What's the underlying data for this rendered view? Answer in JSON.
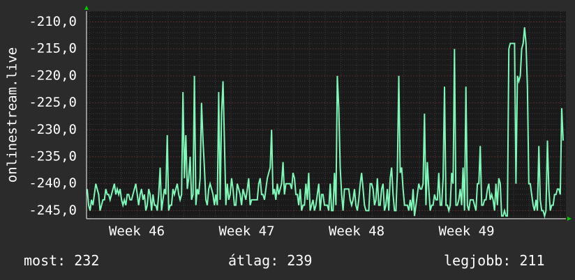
{
  "chart_data": {
    "type": "line",
    "ylabel": "onlinestream.live",
    "ylim": [
      -246.5,
      -208.0
    ],
    "y_ticks": [
      -210,
      -215,
      -220,
      -225,
      -230,
      -235,
      -240,
      -245
    ],
    "y_tick_labels": [
      "-210,0",
      "-215,0",
      "-220,0",
      "-225,0",
      "-230,0",
      "-235,0",
      "-240,0",
      "-245,0"
    ],
    "x_tick_labels": [
      "Week 46",
      "Week 47",
      "Week 48",
      "Week 49"
    ],
    "grid": true,
    "colors": {
      "background": "#2b2b2b",
      "plot": "#1a1a1a",
      "line": "#7ff7b8",
      "grid_major": "#5a2f2f",
      "grid_minor": "#3a3a3a",
      "arrow": "#00cc00",
      "text": "#ffffff"
    },
    "series": [
      {
        "values": [
          -241,
          -244,
          -245,
          -243,
          -244,
          -242,
          -240,
          -241,
          -242,
          -245,
          -244,
          -243,
          -243,
          -241,
          -242,
          -242,
          -243,
          -242,
          -241,
          -240,
          -242,
          -241,
          -242,
          -241,
          -243,
          -244,
          -243,
          -244,
          -242,
          -242,
          -243,
          -243,
          -242,
          -241,
          -240,
          -242,
          -244,
          -242,
          -241,
          -243,
          -242,
          -245,
          -244,
          -241,
          -242,
          -245,
          -242,
          -244,
          -244,
          -245,
          -242,
          -237,
          -245,
          -243,
          -241,
          -242,
          -231,
          -245,
          -244,
          -244,
          -241,
          -242,
          -241,
          -240,
          -242,
          -243,
          -242,
          -223,
          -239,
          -231,
          -241,
          -239,
          -235,
          -243,
          -242,
          -220,
          -244,
          -241,
          -242,
          -239,
          -225,
          -232,
          -237,
          -243,
          -244,
          -241,
          -240,
          -241,
          -242,
          -244,
          -242,
          -244,
          -223,
          -243,
          -227,
          -221,
          -232,
          -244,
          -240,
          -243,
          -242,
          -239,
          -241,
          -244,
          -244,
          -240,
          -241,
          -242,
          -244,
          -241,
          -242,
          -243,
          -241,
          -239,
          -244,
          -243,
          -243,
          -243,
          -243,
          -243,
          -240,
          -239,
          -242,
          -242,
          -243,
          -241,
          -239,
          -238,
          -237,
          -230,
          -242,
          -241,
          -243,
          -240,
          -242,
          -241,
          -240,
          -236,
          -242,
          -240,
          -240,
          -240,
          -240,
          -241,
          -238,
          -239,
          -242,
          -242,
          -244,
          -241,
          -245,
          -244,
          -244,
          -240,
          -243,
          -238,
          -245,
          -244,
          -243,
          -245,
          -244,
          -242,
          -240,
          -245,
          -242,
          -242,
          -244,
          -244,
          -244,
          -245,
          -240,
          -245,
          -245,
          -238,
          -244,
          -220,
          -226,
          -237,
          -242,
          -245,
          -241,
          -241,
          -241,
          -241,
          -243,
          -244,
          -243,
          -241,
          -244,
          -245,
          -243,
          -240,
          -238,
          -241,
          -244,
          -245,
          -245,
          -245,
          -240,
          -240,
          -241,
          -244,
          -243,
          -239,
          -244,
          -244,
          -241,
          -240,
          -245,
          -244,
          -241,
          -245,
          -239,
          -237,
          -242,
          -245,
          -245,
          -238,
          -220,
          -238,
          -237,
          -241,
          -244,
          -244,
          -244,
          -245,
          -243,
          -245,
          -241,
          -246,
          -244,
          -242,
          -240,
          -241,
          -241,
          -240,
          -227,
          -244,
          -236,
          -241,
          -245,
          -244,
          -244,
          -242,
          -243,
          -243,
          -238,
          -244,
          -244,
          -239,
          -222,
          -244,
          -244,
          -245,
          -244,
          -238,
          -240,
          -215,
          -244,
          -244,
          -243,
          -241,
          -244,
          -237,
          -245,
          -222,
          -244,
          -245,
          -243,
          -243,
          -243,
          -244,
          -245,
          -240,
          -240,
          -233,
          -244,
          -244,
          -243,
          -243,
          -241,
          -240,
          -243,
          -242,
          -243,
          -245,
          -240,
          -244,
          -239,
          -240,
          -246,
          -246,
          -245,
          -246,
          -246,
          -215,
          -214,
          -214,
          -214,
          -214,
          -240,
          -220,
          -221,
          -220,
          -215,
          -214,
          -211,
          -214,
          -222,
          -240,
          -240,
          -242,
          -244,
          -245,
          -243,
          -245,
          -233,
          -243,
          -245,
          -245,
          -246,
          -245,
          -232,
          -241,
          -245,
          -244,
          -244,
          -242,
          -242,
          -241,
          -241,
          -242,
          -226,
          -232
        ]
      }
    ],
    "notes_hidden": ""
  },
  "stats": {
    "current": "most: 232",
    "average": "átlag: 239",
    "best": "legjobb: 211"
  }
}
